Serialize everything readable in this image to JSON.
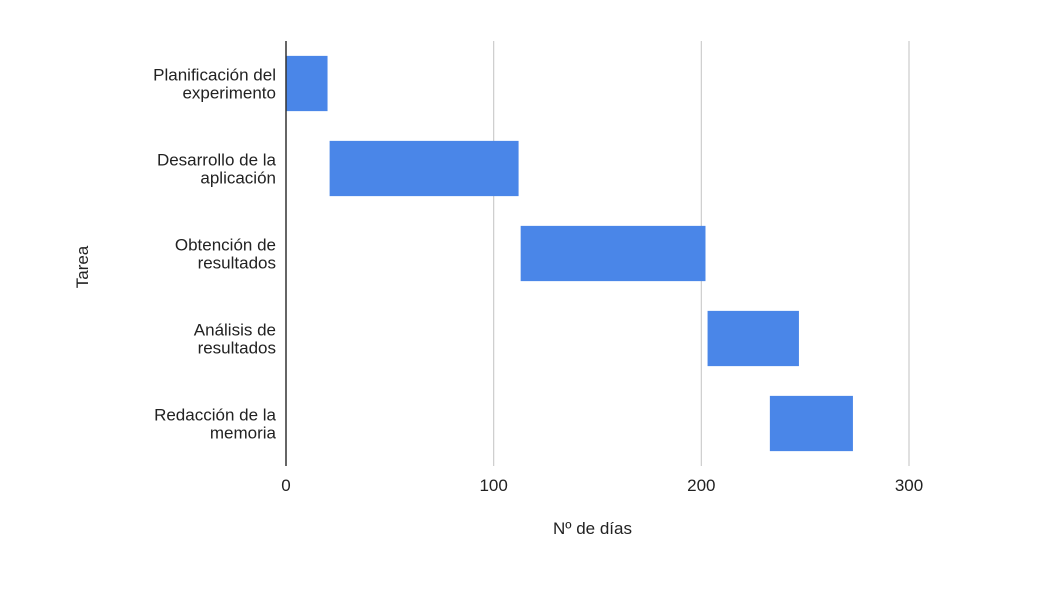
{
  "chart_data": {
    "type": "bar",
    "orientation": "horizontal-gantt",
    "title": "",
    "xlabel": "Nº de días",
    "ylabel": "Tarea",
    "xlim": [
      0,
      300
    ],
    "xticks": [
      "0",
      "100",
      "200",
      "300"
    ],
    "grid": true,
    "legend": "none",
    "bar_color": "#4a86e8",
    "categories": [
      [
        "Planificación del",
        "experimento"
      ],
      [
        "Desarrollo de la",
        "aplicación"
      ],
      [
        "Obtención de",
        "resultados"
      ],
      [
        "Análisis de",
        "resultados"
      ],
      [
        "Redacción de la",
        "memoria"
      ]
    ],
    "tasks": [
      {
        "start": 0,
        "end": 20
      },
      {
        "start": 21,
        "end": 112
      },
      {
        "start": 113,
        "end": 202
      },
      {
        "start": 203,
        "end": 247
      },
      {
        "start": 233,
        "end": 273
      }
    ]
  }
}
